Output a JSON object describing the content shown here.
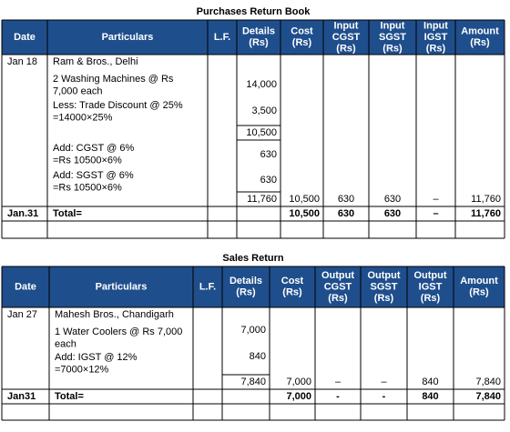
{
  "tables": [
    {
      "title": "Purchases Return Book",
      "columns": [
        [
          "Date"
        ],
        [
          "Particulars"
        ],
        [
          "L.F."
        ],
        [
          "Details",
          "(Rs)"
        ],
        [
          "Cost",
          "(Rs)"
        ],
        [
          "Input",
          "CGST",
          "(Rs)"
        ],
        [
          "Input",
          "SGST",
          "(Rs)"
        ],
        [
          "Input",
          "IGST",
          "(Rs)"
        ],
        [
          "Amount",
          "(Rs)"
        ]
      ],
      "date": "Jan 18",
      "items": [
        {
          "particulars": [
            "Ram & Bros., Delhi"
          ]
        },
        {
          "particulars": [
            "2 Washing Machines @ Rs",
            "7,000 each"
          ],
          "details": "14,000"
        },
        {
          "particulars": [
            "Less: Trade Discount @ 25%",
            "=14000×25%"
          ],
          "details": "3,500"
        },
        {
          "details": "10,500"
        },
        {
          "particulars": [
            "Add: CGST @ 6%",
            "=Rs 10500×6%"
          ],
          "details": "630"
        },
        {
          "particulars": [
            "Add: SGST @ 6%",
            "=Rs 10500×6%"
          ],
          "details": "630"
        }
      ],
      "summary": {
        "details": "11,760",
        "cost": "10,500",
        "cgst": "630",
        "sgst": "630",
        "igst": "–",
        "amount": "11,760"
      },
      "total": {
        "date": "Jan.31",
        "label": "Total=",
        "cost": "10,500",
        "cgst": "630",
        "sgst": "630",
        "igst": "–",
        "amount": "11,760"
      }
    },
    {
      "title": "Sales Return",
      "columns": [
        [
          "Date"
        ],
        [
          "Particulars"
        ],
        [
          "L.F."
        ],
        [
          "Details",
          "(Rs)"
        ],
        [
          "Cost",
          "(Rs)"
        ],
        [
          "Output",
          "CGST",
          "(Rs)"
        ],
        [
          "Output",
          "SGST",
          "(Rs)"
        ],
        [
          "Output",
          "IGST",
          "(Rs)"
        ],
        [
          "Amount",
          "(Rs)"
        ]
      ],
      "date": "Jan 27",
      "items": [
        {
          "particulars": [
            "Mahesh Bros., Chandigarh"
          ]
        },
        {
          "particulars": [
            "1 Water Coolers @ Rs 7,000",
            "each"
          ],
          "details": "7,000"
        },
        {
          "particulars": [
            "Add: IGST @ 12%",
            "=7000×12%"
          ],
          "details": "840"
        }
      ],
      "summary": {
        "details": "7,840",
        "cost": "7,000",
        "cgst": "–",
        "sgst": "–",
        "igst": "840",
        "amount": "7,840"
      },
      "total": {
        "date": "Jan31",
        "label": "Total=",
        "cost": "7,000",
        "cgst": "-",
        "sgst": "-",
        "igst": "840",
        "amount": "7,840"
      }
    }
  ]
}
